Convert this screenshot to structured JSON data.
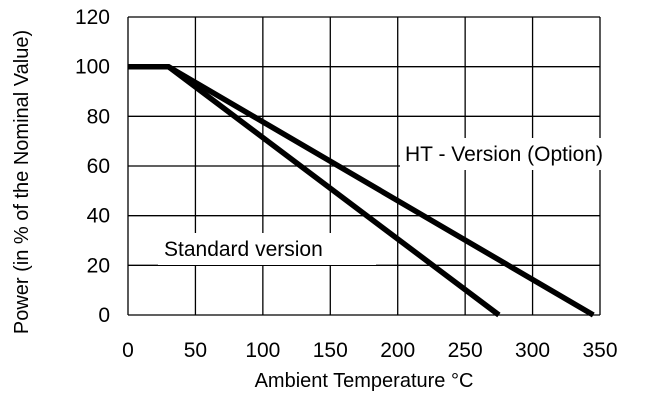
{
  "chart_data": {
    "type": "line",
    "xlabel": "Ambient Temperature °C",
    "ylabel": "Power (in % of the Nominal Value)",
    "xlim": [
      0,
      350
    ],
    "ylim": [
      0,
      120
    ],
    "x_ticks": [
      "0",
      "50",
      "100",
      "150",
      "200",
      "250",
      "300",
      "350"
    ],
    "y_ticks": [
      "0",
      "20",
      "40",
      "60",
      "80",
      "100",
      "120"
    ],
    "grid": true,
    "series": [
      {
        "name": "Standard version",
        "x": [
          0,
          30,
          275
        ],
        "y": [
          100,
          100,
          0
        ]
      },
      {
        "name": "HT - Version (Option)",
        "x": [
          0,
          30,
          345
        ],
        "y": [
          100,
          100,
          0
        ]
      }
    ],
    "colors": {
      "line": "#000000",
      "grid": "#000000",
      "background": "#ffffff"
    }
  }
}
